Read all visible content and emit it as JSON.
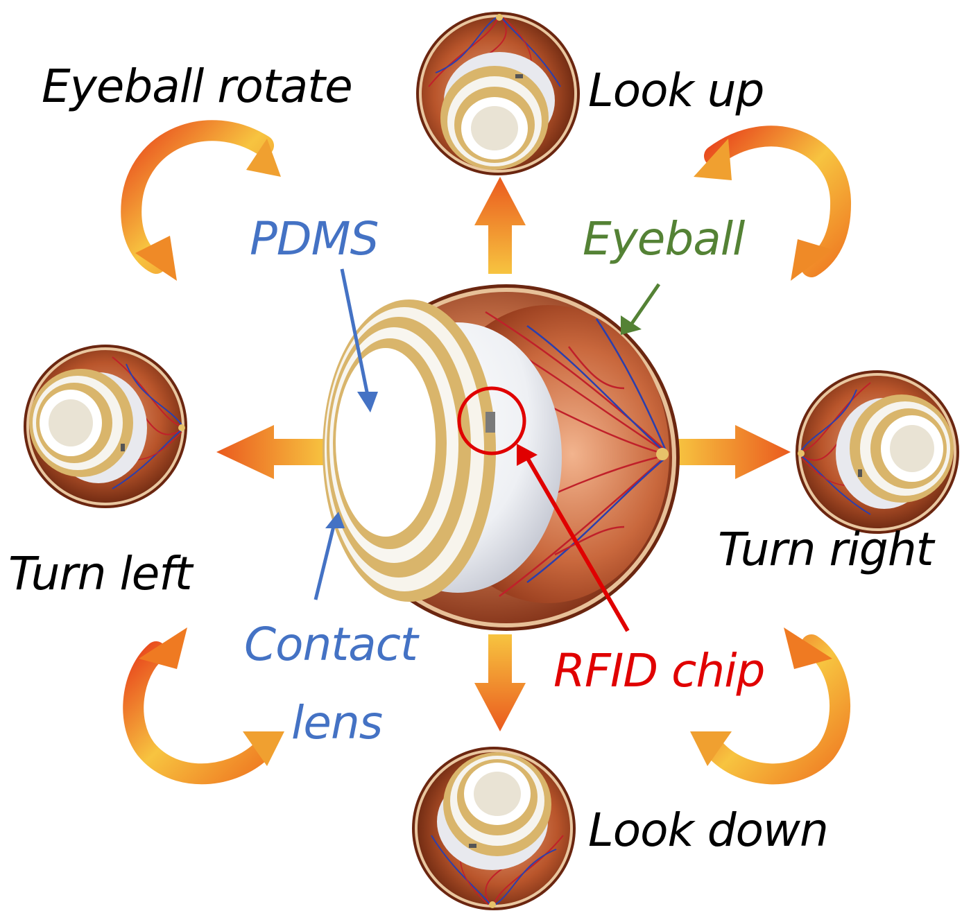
{
  "labels": {
    "eyeball_rotate": "Eyeball rotate",
    "look_up": "Look up",
    "look_down": "Look down",
    "turn_left": "Turn left",
    "turn_right": "Turn right",
    "pdms": "PDMS",
    "eyeball": "Eyeball",
    "contact_lens_line1": "Contact",
    "contact_lens_line2": "lens",
    "rfid_chip": "RFID chip"
  },
  "colors": {
    "text": "#000000",
    "pdms": "#4472c4",
    "contact_lens": "#4472c4",
    "eyeball": "#548235",
    "rfid": "#e00000",
    "arrow_light": "#f5b73b",
    "arrow_dark": "#e8451c",
    "lens_gold": "#d9b56b",
    "eye_shell": "#b8562a",
    "eye_inner": "#c8734a",
    "vein_red": "#c0202a",
    "vein_blue": "#2a3fae"
  },
  "icons": {
    "center": "eyeball-with-contact-lens-icon",
    "direction_arrows": "direction-arrow-icon",
    "rotation_arrows": "curved-rotation-arrow-icon"
  }
}
